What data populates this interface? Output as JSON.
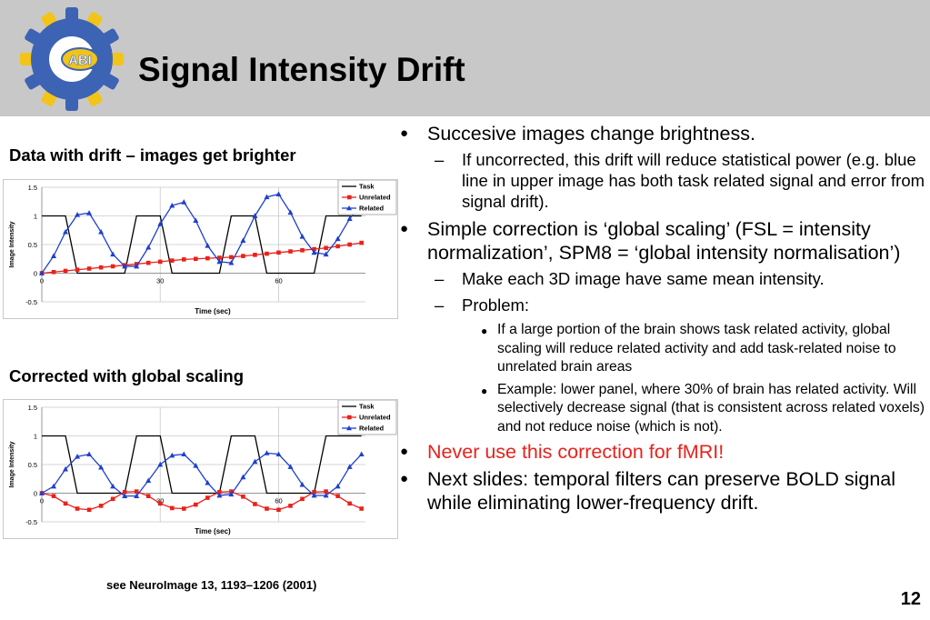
{
  "slide": {
    "title": "Signal Intensity Drift",
    "logo_text": "ABI",
    "page_number": "12",
    "reference": "see NeuroImage 13, 1193–1206 (2001)"
  },
  "colors": {
    "header_bg": "#c8c8c8",
    "task": "#000000",
    "unrelated": "#e8221b",
    "related": "#1f3fcf",
    "logo_blue": "#3d63b4",
    "logo_yellow": "#f2c417",
    "warning_text": "#e8221b"
  },
  "sections": {
    "top_label": "Data with drift – images get brighter",
    "bottom_label": "Corrected with global scaling"
  },
  "bullets": [
    {
      "level": 1,
      "text": "Succesive images change brightness."
    },
    {
      "level": 2,
      "text": "If uncorrected, this drift will reduce statistical power (e.g. blue line in upper image has both task related signal and error from signal drift)."
    },
    {
      "level": 1,
      "text": "Simple correction is ‘global scaling’ (FSL = intensity normalization’, SPM8 = ‘global intensity normalisation’)"
    },
    {
      "level": 2,
      "text": "Make each 3D image have same mean intensity."
    },
    {
      "level": 2,
      "text": "Problem:"
    },
    {
      "level": 3,
      "text": "If a large portion of the brain shows task related activity, global scaling will reduce related activity and add task-related noise to unrelated brain areas"
    },
    {
      "level": 3,
      "text": "Example: lower panel, where 30% of brain has related activity. Will selectively decrease signal (that is consistent across related voxels) and not reduce noise (which is not)."
    },
    {
      "level": 1,
      "text": "Never use this correction for fMRI!",
      "highlight": true
    },
    {
      "level": 1,
      "text": "Next slides: temporal filters can preserve BOLD signal while eliminating lower-frequency drift."
    }
  ],
  "chart_data": [
    {
      "type": "line",
      "xlabel": "Time (sec)",
      "ylabel": "Image Intensity",
      "xlim": [
        0,
        82
      ],
      "ylim": [
        -0.5,
        1.5
      ],
      "xticks": [
        "0",
        "30",
        "60"
      ],
      "yticks": [
        "1.5",
        "1",
        "0.5",
        "0",
        "-0.5"
      ],
      "legend_position": "top-right",
      "grid": true,
      "series": [
        {
          "name": "Task",
          "marker": "none",
          "x": [
            0,
            6,
            9,
            21,
            24,
            30,
            33,
            45,
            48,
            54,
            57,
            69,
            72,
            78,
            81
          ],
          "y": [
            1,
            1,
            0,
            0,
            1,
            1,
            0,
            0,
            1,
            1,
            0,
            0,
            1,
            1,
            1
          ]
        },
        {
          "name": "Unrelated",
          "marker": "square",
          "x": [
            0,
            3,
            6,
            9,
            12,
            15,
            18,
            21,
            24,
            27,
            30,
            33,
            36,
            39,
            42,
            45,
            48,
            51,
            54,
            57,
            60,
            63,
            66,
            69,
            72,
            75,
            78,
            81
          ],
          "y": [
            0.0,
            0.02,
            0.04,
            0.06,
            0.08,
            0.1,
            0.12,
            0.14,
            0.16,
            0.18,
            0.2,
            0.22,
            0.24,
            0.25,
            0.26,
            0.27,
            0.28,
            0.3,
            0.32,
            0.34,
            0.36,
            0.38,
            0.4,
            0.42,
            0.44,
            0.47,
            0.5,
            0.53
          ]
        },
        {
          "name": "Related",
          "marker": "triangle",
          "x": [
            0,
            3,
            6,
            9,
            12,
            15,
            18,
            21,
            24,
            27,
            30,
            33,
            36,
            39,
            42,
            45,
            48,
            51,
            54,
            57,
            60,
            63,
            66,
            69,
            72,
            75,
            78,
            81
          ],
          "y": [
            0.0,
            0.3,
            0.72,
            1.02,
            1.05,
            0.72,
            0.33,
            0.12,
            0.12,
            0.45,
            0.86,
            1.18,
            1.24,
            0.92,
            0.48,
            0.2,
            0.18,
            0.57,
            1.0,
            1.33,
            1.38,
            1.06,
            0.64,
            0.36,
            0.33,
            0.6,
            0.95,
            1.2
          ]
        }
      ]
    },
    {
      "type": "line",
      "xlabel": "Time (sec)",
      "ylabel": "Image Intensity",
      "xlim": [
        0,
        82
      ],
      "ylim": [
        -0.5,
        1.5
      ],
      "xticks": [
        "0",
        "30",
        "60"
      ],
      "yticks": [
        "1.5",
        "1",
        "0.5",
        "0",
        "-0.5"
      ],
      "legend_position": "top-right",
      "grid": true,
      "series": [
        {
          "name": "Task",
          "marker": "none",
          "x": [
            0,
            6,
            9,
            21,
            24,
            30,
            33,
            45,
            48,
            54,
            57,
            69,
            72,
            78,
            81
          ],
          "y": [
            1,
            1,
            0,
            0,
            1,
            1,
            0,
            0,
            1,
            1,
            0,
            0,
            1,
            1,
            1
          ]
        },
        {
          "name": "Unrelated",
          "marker": "square",
          "x": [
            0,
            3,
            6,
            9,
            12,
            15,
            18,
            21,
            24,
            27,
            30,
            33,
            36,
            39,
            42,
            45,
            48,
            51,
            54,
            57,
            60,
            63,
            66,
            69,
            72,
            75,
            78,
            81
          ],
          "y": [
            0.0,
            -0.05,
            -0.18,
            -0.27,
            -0.29,
            -0.22,
            -0.1,
            0.02,
            0.03,
            -0.05,
            -0.18,
            -0.26,
            -0.27,
            -0.2,
            -0.08,
            0.02,
            0.03,
            -0.06,
            -0.19,
            -0.27,
            -0.29,
            -0.22,
            -0.1,
            0.02,
            0.03,
            -0.05,
            -0.18,
            -0.27
          ]
        },
        {
          "name": "Related",
          "marker": "triangle",
          "x": [
            0,
            3,
            6,
            9,
            12,
            15,
            18,
            21,
            24,
            27,
            30,
            33,
            36,
            39,
            42,
            45,
            48,
            51,
            54,
            57,
            60,
            63,
            66,
            69,
            72,
            75,
            78,
            81
          ],
          "y": [
            0.0,
            0.12,
            0.42,
            0.64,
            0.68,
            0.45,
            0.12,
            -0.05,
            -0.05,
            0.22,
            0.5,
            0.66,
            0.68,
            0.48,
            0.18,
            -0.04,
            -0.02,
            0.28,
            0.55,
            0.7,
            0.68,
            0.46,
            0.15,
            -0.04,
            -0.04,
            0.12,
            0.46,
            0.68
          ]
        }
      ]
    }
  ]
}
